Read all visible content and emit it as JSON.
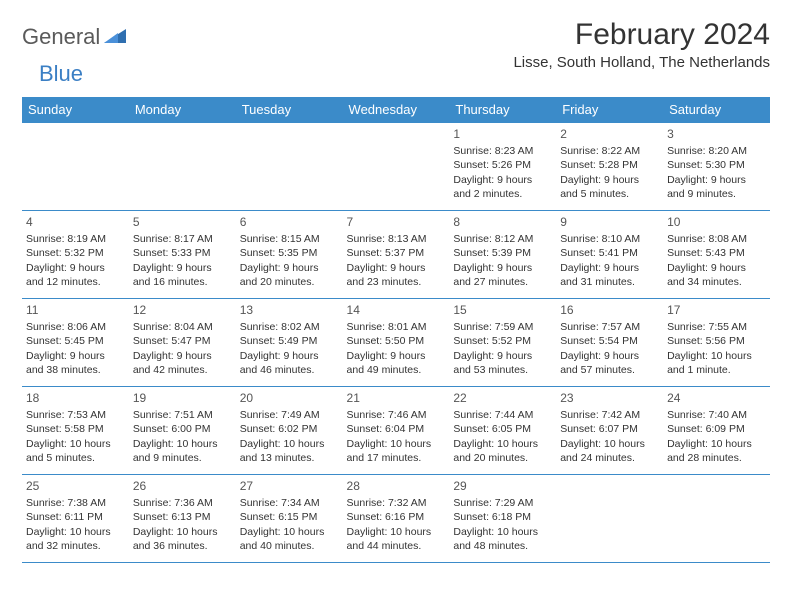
{
  "brand": {
    "name": "General",
    "accent": "Blue"
  },
  "title": "February 2024",
  "location": "Lisse, South Holland, The Netherlands",
  "colors": {
    "header_bg": "#3b8bc9",
    "header_text": "#ffffff",
    "border": "#3b8bc9",
    "text": "#333333",
    "logo_gray": "#5a5a5a",
    "logo_blue": "#3b7fc4",
    "background": "#ffffff"
  },
  "day_names": [
    "Sunday",
    "Monday",
    "Tuesday",
    "Wednesday",
    "Thursday",
    "Friday",
    "Saturday"
  ],
  "weeks": [
    [
      null,
      null,
      null,
      null,
      {
        "n": "1",
        "sr": "Sunrise: 8:23 AM",
        "ss": "Sunset: 5:26 PM",
        "dl": "Daylight: 9 hours and 2 minutes."
      },
      {
        "n": "2",
        "sr": "Sunrise: 8:22 AM",
        "ss": "Sunset: 5:28 PM",
        "dl": "Daylight: 9 hours and 5 minutes."
      },
      {
        "n": "3",
        "sr": "Sunrise: 8:20 AM",
        "ss": "Sunset: 5:30 PM",
        "dl": "Daylight: 9 hours and 9 minutes."
      }
    ],
    [
      {
        "n": "4",
        "sr": "Sunrise: 8:19 AM",
        "ss": "Sunset: 5:32 PM",
        "dl": "Daylight: 9 hours and 12 minutes."
      },
      {
        "n": "5",
        "sr": "Sunrise: 8:17 AM",
        "ss": "Sunset: 5:33 PM",
        "dl": "Daylight: 9 hours and 16 minutes."
      },
      {
        "n": "6",
        "sr": "Sunrise: 8:15 AM",
        "ss": "Sunset: 5:35 PM",
        "dl": "Daylight: 9 hours and 20 minutes."
      },
      {
        "n": "7",
        "sr": "Sunrise: 8:13 AM",
        "ss": "Sunset: 5:37 PM",
        "dl": "Daylight: 9 hours and 23 minutes."
      },
      {
        "n": "8",
        "sr": "Sunrise: 8:12 AM",
        "ss": "Sunset: 5:39 PM",
        "dl": "Daylight: 9 hours and 27 minutes."
      },
      {
        "n": "9",
        "sr": "Sunrise: 8:10 AM",
        "ss": "Sunset: 5:41 PM",
        "dl": "Daylight: 9 hours and 31 minutes."
      },
      {
        "n": "10",
        "sr": "Sunrise: 8:08 AM",
        "ss": "Sunset: 5:43 PM",
        "dl": "Daylight: 9 hours and 34 minutes."
      }
    ],
    [
      {
        "n": "11",
        "sr": "Sunrise: 8:06 AM",
        "ss": "Sunset: 5:45 PM",
        "dl": "Daylight: 9 hours and 38 minutes."
      },
      {
        "n": "12",
        "sr": "Sunrise: 8:04 AM",
        "ss": "Sunset: 5:47 PM",
        "dl": "Daylight: 9 hours and 42 minutes."
      },
      {
        "n": "13",
        "sr": "Sunrise: 8:02 AM",
        "ss": "Sunset: 5:49 PM",
        "dl": "Daylight: 9 hours and 46 minutes."
      },
      {
        "n": "14",
        "sr": "Sunrise: 8:01 AM",
        "ss": "Sunset: 5:50 PM",
        "dl": "Daylight: 9 hours and 49 minutes."
      },
      {
        "n": "15",
        "sr": "Sunrise: 7:59 AM",
        "ss": "Sunset: 5:52 PM",
        "dl": "Daylight: 9 hours and 53 minutes."
      },
      {
        "n": "16",
        "sr": "Sunrise: 7:57 AM",
        "ss": "Sunset: 5:54 PM",
        "dl": "Daylight: 9 hours and 57 minutes."
      },
      {
        "n": "17",
        "sr": "Sunrise: 7:55 AM",
        "ss": "Sunset: 5:56 PM",
        "dl": "Daylight: 10 hours and 1 minute."
      }
    ],
    [
      {
        "n": "18",
        "sr": "Sunrise: 7:53 AM",
        "ss": "Sunset: 5:58 PM",
        "dl": "Daylight: 10 hours and 5 minutes."
      },
      {
        "n": "19",
        "sr": "Sunrise: 7:51 AM",
        "ss": "Sunset: 6:00 PM",
        "dl": "Daylight: 10 hours and 9 minutes."
      },
      {
        "n": "20",
        "sr": "Sunrise: 7:49 AM",
        "ss": "Sunset: 6:02 PM",
        "dl": "Daylight: 10 hours and 13 minutes."
      },
      {
        "n": "21",
        "sr": "Sunrise: 7:46 AM",
        "ss": "Sunset: 6:04 PM",
        "dl": "Daylight: 10 hours and 17 minutes."
      },
      {
        "n": "22",
        "sr": "Sunrise: 7:44 AM",
        "ss": "Sunset: 6:05 PM",
        "dl": "Daylight: 10 hours and 20 minutes."
      },
      {
        "n": "23",
        "sr": "Sunrise: 7:42 AM",
        "ss": "Sunset: 6:07 PM",
        "dl": "Daylight: 10 hours and 24 minutes."
      },
      {
        "n": "24",
        "sr": "Sunrise: 7:40 AM",
        "ss": "Sunset: 6:09 PM",
        "dl": "Daylight: 10 hours and 28 minutes."
      }
    ],
    [
      {
        "n": "25",
        "sr": "Sunrise: 7:38 AM",
        "ss": "Sunset: 6:11 PM",
        "dl": "Daylight: 10 hours and 32 minutes."
      },
      {
        "n": "26",
        "sr": "Sunrise: 7:36 AM",
        "ss": "Sunset: 6:13 PM",
        "dl": "Daylight: 10 hours and 36 minutes."
      },
      {
        "n": "27",
        "sr": "Sunrise: 7:34 AM",
        "ss": "Sunset: 6:15 PM",
        "dl": "Daylight: 10 hours and 40 minutes."
      },
      {
        "n": "28",
        "sr": "Sunrise: 7:32 AM",
        "ss": "Sunset: 6:16 PM",
        "dl": "Daylight: 10 hours and 44 minutes."
      },
      {
        "n": "29",
        "sr": "Sunrise: 7:29 AM",
        "ss": "Sunset: 6:18 PM",
        "dl": "Daylight: 10 hours and 48 minutes."
      },
      null,
      null
    ]
  ]
}
